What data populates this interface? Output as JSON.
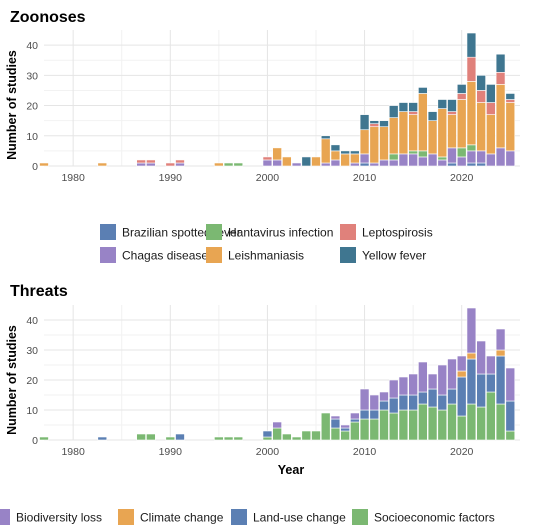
{
  "chart_data": [
    {
      "type": "bar",
      "stacked": true,
      "title": "Zoonoses",
      "xlabel": "",
      "ylabel": "Number of studies",
      "xlim": [
        1977,
        2026
      ],
      "ylim": [
        0,
        45
      ],
      "xticks": [
        1980,
        1990,
        2000,
        2010,
        2020
      ],
      "yticks": [
        0,
        10,
        20,
        30,
        40
      ],
      "grid": true,
      "legend_position": "bottom",
      "x": [
        1977,
        1983,
        1987,
        1988,
        1990,
        1991,
        1995,
        1996,
        1997,
        1998,
        2000,
        2001,
        2002,
        2003,
        2004,
        2005,
        2006,
        2007,
        2008,
        2009,
        2010,
        2011,
        2012,
        2013,
        2014,
        2015,
        2016,
        2017,
        2018,
        2019,
        2020,
        2021,
        2022,
        2023,
        2024,
        2025
      ],
      "series": [
        {
          "name": "Brazilian spotted fever",
          "color": "#5b7fb3",
          "values": [
            0,
            0,
            0,
            0,
            0,
            0,
            0,
            0,
            0,
            0,
            0,
            0,
            0,
            0,
            0,
            0,
            0,
            0,
            0,
            0,
            1,
            0,
            0,
            0,
            0,
            0,
            0,
            0,
            0,
            1,
            0,
            1,
            1,
            0,
            0,
            0
          ]
        },
        {
          "name": "Chagas disease",
          "color": "#9883c6",
          "values": [
            0,
            0,
            1,
            1,
            0,
            1,
            0,
            0,
            0,
            0,
            2,
            2,
            0,
            1,
            0,
            0,
            1,
            2,
            0,
            1,
            3,
            1,
            2,
            2,
            4,
            4,
            3,
            4,
            2,
            5,
            3,
            4,
            4,
            4,
            6,
            5
          ]
        },
        {
          "name": "Hantavirus infection",
          "color": "#7bb872",
          "values": [
            0,
            0,
            0,
            0,
            0,
            0,
            0,
            1,
            1,
            0,
            0,
            0,
            0,
            0,
            0,
            0,
            0,
            0,
            0,
            0,
            0,
            0,
            0,
            2,
            0,
            1,
            2,
            0,
            1,
            0,
            3,
            2,
            0,
            0,
            0,
            0
          ]
        },
        {
          "name": "Leishmaniasis",
          "color": "#e8a552",
          "values": [
            1,
            1,
            0,
            0,
            0,
            0,
            1,
            0,
            0,
            0,
            0,
            4,
            3,
            0,
            0,
            3,
            8,
            3,
            4,
            3,
            8,
            12,
            11,
            12,
            14,
            12,
            19,
            11,
            16,
            11,
            16,
            21,
            16,
            13,
            21,
            16
          ]
        },
        {
          "name": "Leptospirosis",
          "color": "#e0817b",
          "values": [
            0,
            0,
            1,
            1,
            1,
            1,
            0,
            0,
            0,
            0,
            1,
            0,
            0,
            0,
            0,
            0,
            0,
            0,
            0,
            0,
            0,
            1,
            0,
            0,
            0,
            1,
            0,
            0,
            0,
            1,
            2,
            8,
            4,
            4,
            4,
            1
          ]
        },
        {
          "name": "Yellow fever",
          "color": "#3f7690",
          "values": [
            0,
            0,
            0,
            0,
            0,
            0,
            0,
            0,
            0,
            0,
            0,
            0,
            0,
            0,
            3,
            0,
            1,
            2,
            1,
            1,
            5,
            1,
            2,
            4,
            3,
            3,
            2,
            3,
            3,
            4,
            3,
            8,
            5,
            6,
            6,
            2
          ]
        }
      ]
    },
    {
      "type": "bar",
      "stacked": true,
      "title": "Threats",
      "xlabel": "Year",
      "ylabel": "Number of studies",
      "xlim": [
        1977,
        2026
      ],
      "ylim": [
        0,
        45
      ],
      "xticks": [
        1980,
        1990,
        2000,
        2010,
        2020
      ],
      "yticks": [
        0,
        10,
        20,
        30,
        40
      ],
      "grid": true,
      "legend_position": "bottom",
      "x": [
        1977,
        1983,
        1987,
        1988,
        1990,
        1991,
        1995,
        1996,
        1997,
        1998,
        2000,
        2001,
        2002,
        2003,
        2004,
        2005,
        2006,
        2007,
        2008,
        2009,
        2010,
        2011,
        2012,
        2013,
        2014,
        2015,
        2016,
        2017,
        2018,
        2019,
        2020,
        2021,
        2022,
        2023,
        2024,
        2025
      ],
      "series": [
        {
          "name": "Socioeconomic factors",
          "color": "#7bb872",
          "values": [
            1,
            0,
            2,
            2,
            1,
            0,
            1,
            1,
            1,
            0,
            1,
            4,
            2,
            1,
            3,
            3,
            9,
            4,
            3,
            6,
            7,
            7,
            10,
            9,
            10,
            10,
            12,
            11,
            10,
            12,
            8,
            12,
            11,
            16,
            12,
            3
          ]
        },
        {
          "name": "Land-use change",
          "color": "#5b7fb3",
          "values": [
            0,
            1,
            0,
            0,
            0,
            2,
            0,
            0,
            0,
            0,
            2,
            0,
            0,
            0,
            0,
            0,
            0,
            3,
            1,
            1,
            3,
            3,
            3,
            5,
            5,
            5,
            4,
            6,
            5,
            5,
            13,
            15,
            11,
            6,
            16,
            10
          ]
        },
        {
          "name": "Climate change",
          "color": "#e8a552",
          "values": [
            0,
            0,
            0,
            0,
            0,
            0,
            0,
            0,
            0,
            0,
            0,
            0,
            0,
            0,
            0,
            0,
            0,
            0,
            0,
            0,
            0,
            0,
            0,
            0,
            0,
            0,
            0,
            0,
            0,
            0,
            2,
            2,
            0,
            0,
            2,
            0
          ]
        },
        {
          "name": "Biodiversity loss",
          "color": "#9883c6",
          "values": [
            0,
            0,
            0,
            0,
            0,
            0,
            0,
            0,
            0,
            0,
            0,
            2,
            0,
            0,
            0,
            0,
            0,
            1,
            1,
            2,
            7,
            5,
            3,
            6,
            6,
            7,
            10,
            5,
            10,
            10,
            5,
            15,
            11,
            6,
            7,
            11
          ]
        }
      ]
    }
  ],
  "legends": [
    [
      {
        "label": "Brazilian spotted fever",
        "color": "#5b7fb3"
      },
      {
        "label": "Hantavirus infection",
        "color": "#7bb872"
      },
      {
        "label": "Leptospirosis",
        "color": "#e0817b"
      },
      {
        "label": "Chagas disease",
        "color": "#9883c6"
      },
      {
        "label": "Leishmaniasis",
        "color": "#e8a552"
      },
      {
        "label": "Yellow fever",
        "color": "#3f7690"
      }
    ],
    [
      {
        "label": "Biodiversity loss",
        "color": "#9883c6"
      },
      {
        "label": "Climate change",
        "color": "#e8a552"
      },
      {
        "label": "Land-use change",
        "color": "#5b7fb3"
      },
      {
        "label": "Socioeconomic factors",
        "color": "#7bb872"
      }
    ]
  ]
}
